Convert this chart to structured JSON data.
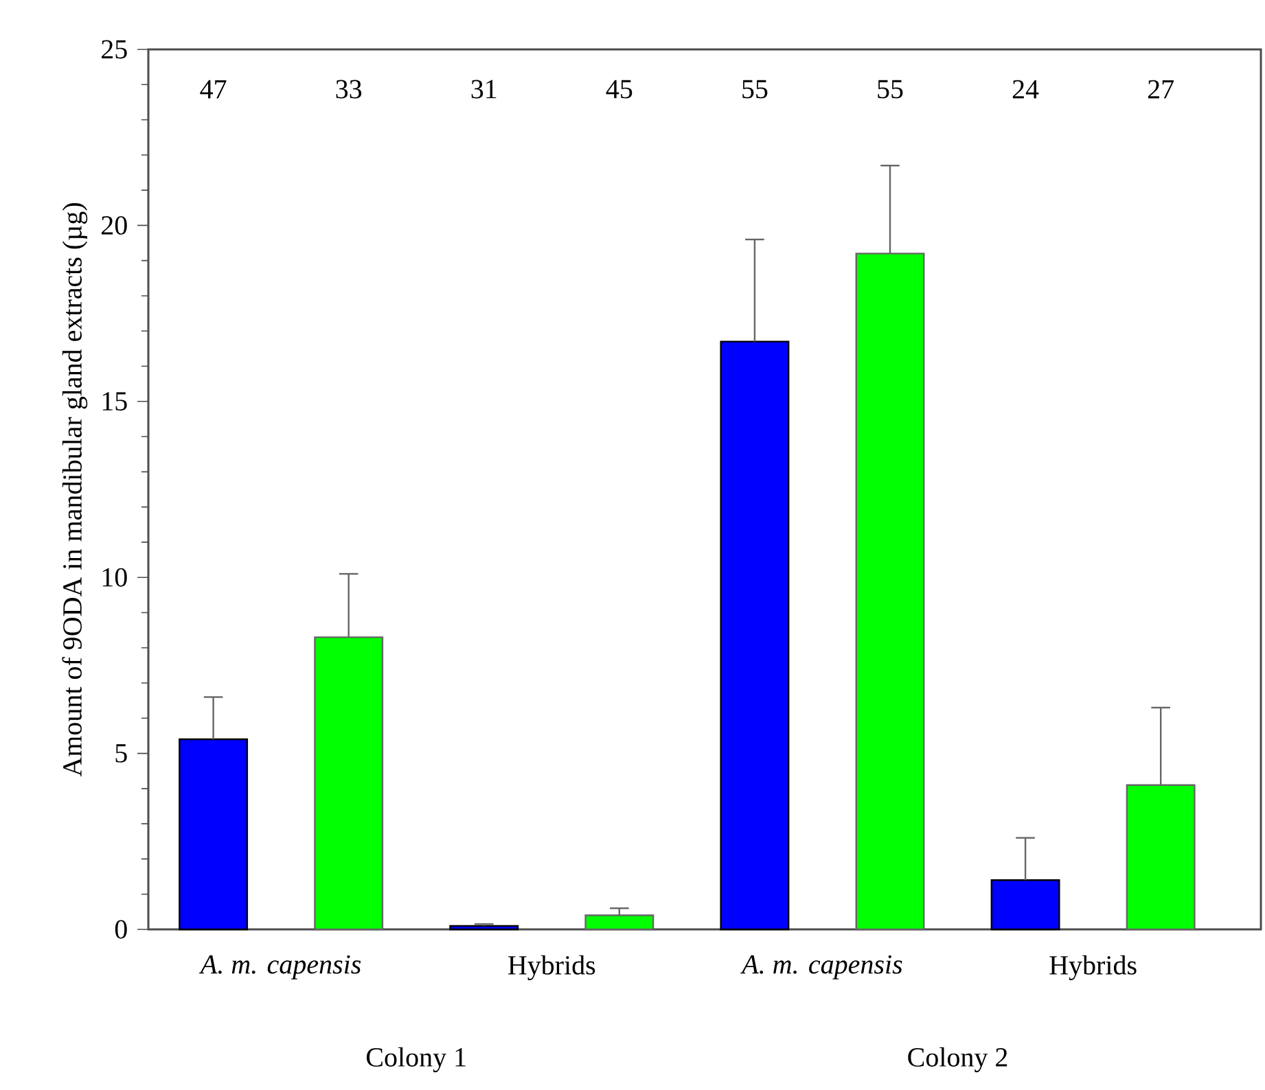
{
  "chart_data": {
    "type": "bar",
    "ylabel": "Amount of 9ODA in mandibular gland extracts (µg)",
    "categories": [
      "*A. m. capensis*",
      "Hybrids",
      "*A. m. capensis*",
      "Hybrids"
    ],
    "series": [
      {
        "color": "#0000ff",
        "values": [
          5.4,
          0.1,
          16.7,
          1.4
        ],
        "errors": [
          [
            5.4,
            6.6
          ],
          [
            0.1,
            0.15
          ],
          [
            16.7,
            19.6
          ],
          [
            1.4,
            2.6
          ]
        ]
      },
      {
        "color": "#00ff00",
        "values": [
          8.3,
          0.4,
          19.2,
          4.1
        ],
        "errors": [
          [
            8.3,
            10.1
          ],
          [
            0.4,
            0.6
          ],
          [
            19.2,
            21.7
          ],
          [
            4.1,
            6.3
          ]
        ]
      }
    ],
    "ylim": [
      0,
      25
    ],
    "yticks": [
      0,
      5,
      10,
      15,
      20,
      25
    ],
    "annotations": [
      "47",
      "33",
      "31",
      "45",
      "55",
      "55",
      "24",
      "27",
      "Colony 1",
      "Colony 2"
    ]
  }
}
